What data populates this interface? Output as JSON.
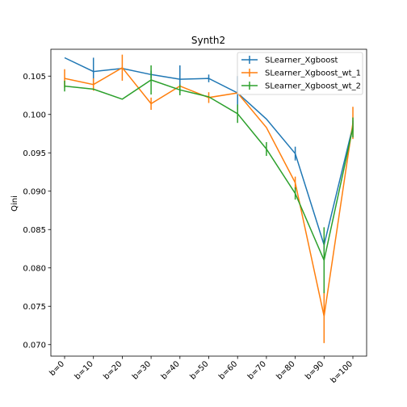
{
  "chart_data": {
    "type": "line",
    "title": "Synth2",
    "xlabel": "",
    "ylabel": "Qini",
    "categories": [
      "b=0",
      "b=10",
      "b=20",
      "b=30",
      "b=40",
      "b=50",
      "b=60",
      "b=70",
      "b=80",
      "b=90",
      "b=100"
    ],
    "y_ticks": [
      "0.070",
      "0.075",
      "0.080",
      "0.085",
      "0.090",
      "0.095",
      "0.100",
      "0.105"
    ],
    "ylim": [
      0.0685,
      0.1085
    ],
    "legend_position": "top-right",
    "grid": false,
    "series": [
      {
        "name": "SLearner_Xgboost",
        "color": "#1f77b4",
        "values": [
          0.1074,
          0.1056,
          0.106,
          0.1052,
          0.1046,
          0.1047,
          0.1028,
          0.0994,
          0.0949,
          0.083,
          0.0985
        ],
        "errors": [
          0.0,
          0.0018,
          0.0,
          0.0005,
          0.0018,
          0.0005,
          0.0022,
          0.0,
          0.0009,
          0.0008,
          0.0007
        ]
      },
      {
        "name": "SLearner_Xgboost_wt_1",
        "color": "#ff7f0e",
        "values": [
          0.1047,
          0.1039,
          0.1061,
          0.1014,
          0.1037,
          0.1022,
          0.1028,
          0.0983,
          0.0911,
          0.0737,
          0.0989
        ],
        "errors": [
          0.0012,
          0.0008,
          0.0017,
          0.0008,
          0.0,
          0.0007,
          0.0,
          0.0,
          0.0008,
          0.0035,
          0.0021
        ]
      },
      {
        "name": "SLearner_Xgboost_wt_2",
        "color": "#2ca02c",
        "values": [
          0.1037,
          0.1033,
          0.102,
          0.1045,
          0.1032,
          0.1023,
          0.1001,
          0.0955,
          0.0897,
          0.081,
          0.0983
        ],
        "errors": [
          0.0007,
          0.0,
          0.0,
          0.0019,
          0.0007,
          0.0,
          0.0012,
          0.0009,
          0.0008,
          0.0043,
          0.0013
        ]
      }
    ]
  }
}
